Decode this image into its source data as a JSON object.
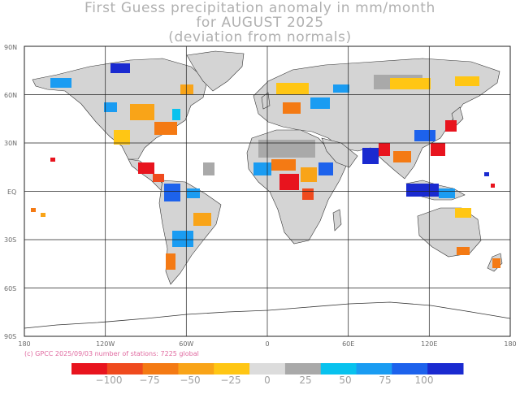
{
  "title": {
    "line1": "First Guess precipitation anomaly in mm/month",
    "line2": "for AUGUST 2025",
    "line3": "(deviation from normals)"
  },
  "map": {
    "lat_labels": [
      "90N",
      "60N",
      "30N",
      "EQ",
      "30S",
      "60S",
      "90S"
    ],
    "lon_labels": [
      "180",
      "120W",
      "60W",
      "0",
      "60E",
      "120E",
      "180"
    ]
  },
  "credit": "(c) GPCC 2025/09/03 number of stations: 7225 global",
  "legend": {
    "labels": [
      "−100",
      "−75",
      "−50",
      "−25",
      "0",
      "25",
      "50",
      "75",
      "100"
    ],
    "colors": [
      "#e8141e",
      "#ef4a1e",
      "#f47a14",
      "#f9a418",
      "#ffc614",
      "#dcdcdc",
      "#a9a9a9",
      "#08c2ee",
      "#1a9cf2",
      "#1d62ec",
      "#1a2ad0"
    ]
  }
}
